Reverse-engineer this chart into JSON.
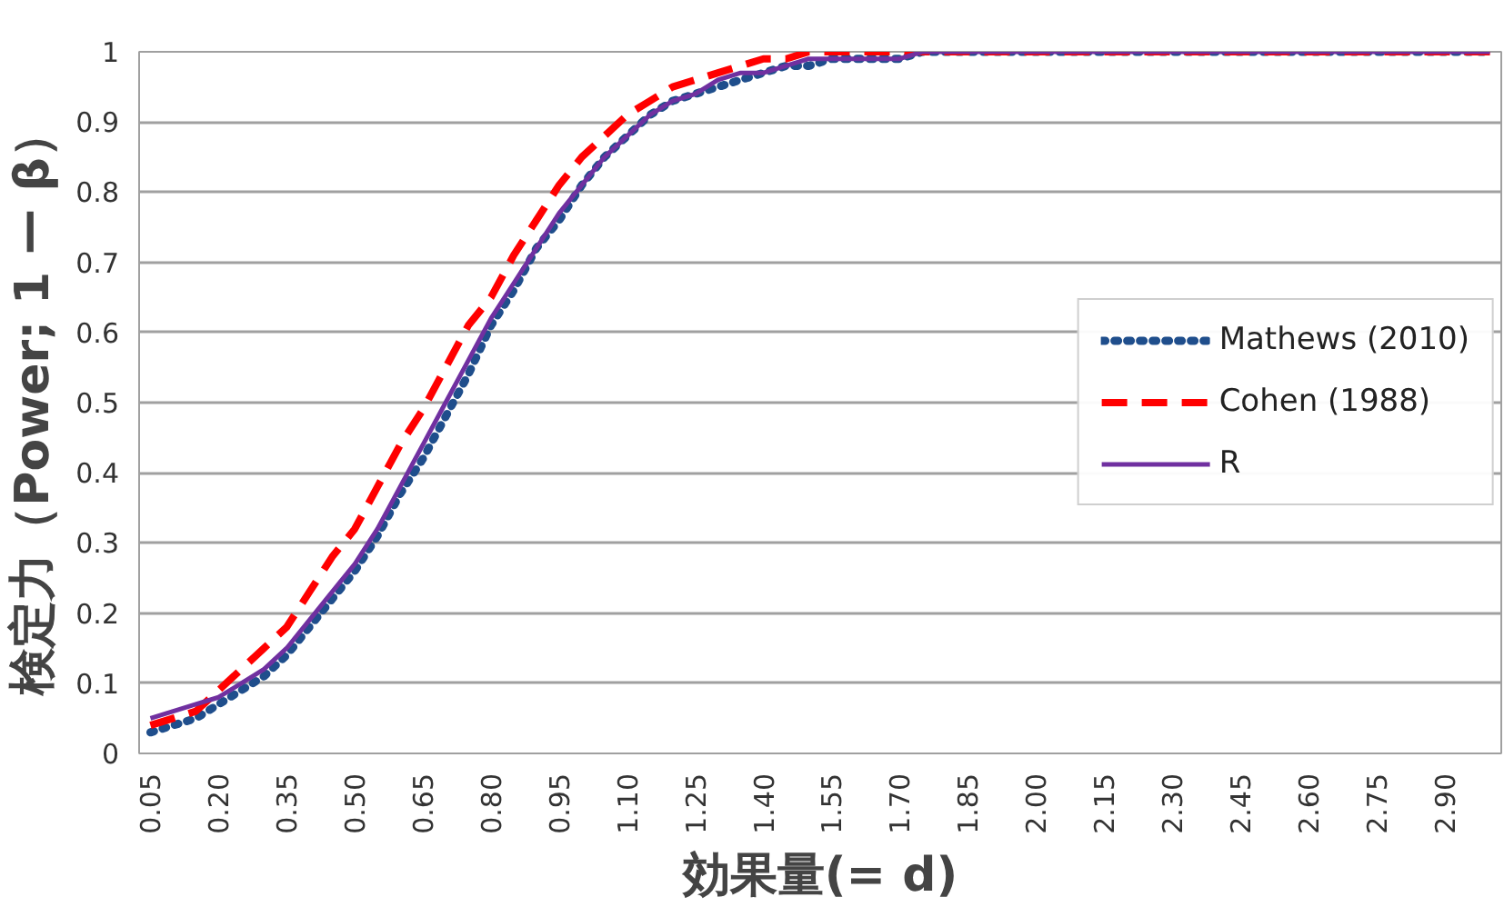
{
  "chart_data": {
    "type": "line",
    "xlabel": "効果量(= d)",
    "ylabel": "検定力（Power; 1 ー β）",
    "categories": [
      "0.05",
      null,
      null,
      "0.20",
      null,
      null,
      "0.35",
      null,
      null,
      "0.50",
      null,
      null,
      "0.65",
      null,
      null,
      "0.80",
      null,
      null,
      "0.95",
      null,
      null,
      "1.10",
      null,
      null,
      "1.25",
      null,
      null,
      "1.40",
      null,
      null,
      "1.55",
      null,
      null,
      "1.70",
      null,
      null,
      "1.85",
      null,
      null,
      "2.00",
      null,
      null,
      "2.15",
      null,
      null,
      "2.30",
      null,
      null,
      "2.45",
      null,
      null,
      "2.60",
      null,
      null,
      "2.75",
      null,
      null,
      "2.90",
      null,
      null
    ],
    "series": [
      {
        "name": "Mathews (2010)",
        "color": "#1f4e8c",
        "line_style": "dotted",
        "values": [
          0.03,
          0.04,
          0.05,
          0.07,
          0.09,
          0.11,
          0.14,
          0.18,
          0.22,
          0.26,
          0.31,
          0.37,
          0.42,
          0.48,
          0.54,
          0.61,
          0.66,
          0.72,
          0.76,
          0.81,
          0.85,
          0.88,
          0.91,
          0.93,
          0.94,
          0.95,
          0.96,
          0.97,
          0.98,
          0.98,
          0.99,
          0.99,
          0.99,
          0.99,
          1,
          1,
          1,
          1,
          1,
          1,
          1,
          1,
          1,
          1,
          1,
          1,
          1,
          1,
          1,
          1,
          1,
          1,
          1,
          1,
          1,
          1,
          1,
          1,
          1,
          1
        ]
      },
      {
        "name": "Cohen (1988)",
        "color": "#ff0000",
        "line_style": "dashed",
        "values": [
          0.04,
          0.05,
          0.06,
          0.09,
          0.12,
          0.15,
          0.18,
          0.23,
          0.28,
          0.32,
          0.38,
          0.44,
          0.49,
          0.55,
          0.61,
          0.65,
          0.71,
          0.76,
          0.81,
          0.85,
          0.88,
          0.91,
          0.93,
          0.95,
          0.96,
          0.97,
          0.98,
          0.99,
          0.99,
          1,
          1,
          1,
          1,
          1,
          1,
          1,
          1,
          1,
          1,
          1,
          1,
          1,
          1,
          1,
          1,
          1,
          1,
          1,
          1,
          1,
          1,
          1,
          1,
          1,
          1,
          1,
          1,
          1,
          1,
          1
        ]
      },
      {
        "name": "R",
        "color": "#7030a0",
        "line_style": "solid",
        "values": [
          0.05,
          0.06,
          0.07,
          0.08,
          0.1,
          0.12,
          0.15,
          0.19,
          0.23,
          0.27,
          0.32,
          0.38,
          0.44,
          0.5,
          0.56,
          0.62,
          0.67,
          0.72,
          0.77,
          0.81,
          0.85,
          0.88,
          0.91,
          0.93,
          0.94,
          0.96,
          0.97,
          0.97,
          0.98,
          0.99,
          0.99,
          0.99,
          0.99,
          0.99,
          1,
          1,
          1,
          1,
          1,
          1,
          1,
          1,
          1,
          1,
          1,
          1,
          1,
          1,
          1,
          1,
          1,
          1,
          1,
          1,
          1,
          1,
          1,
          1,
          1,
          1
        ]
      }
    ],
    "ylim": [
      0,
      1
    ],
    "yticks": [
      0,
      0.1,
      0.2,
      0.3,
      0.4,
      0.5,
      0.6,
      0.7,
      0.8,
      0.9,
      1
    ],
    "grid": "y",
    "legend": "right",
    "marker": "none"
  }
}
